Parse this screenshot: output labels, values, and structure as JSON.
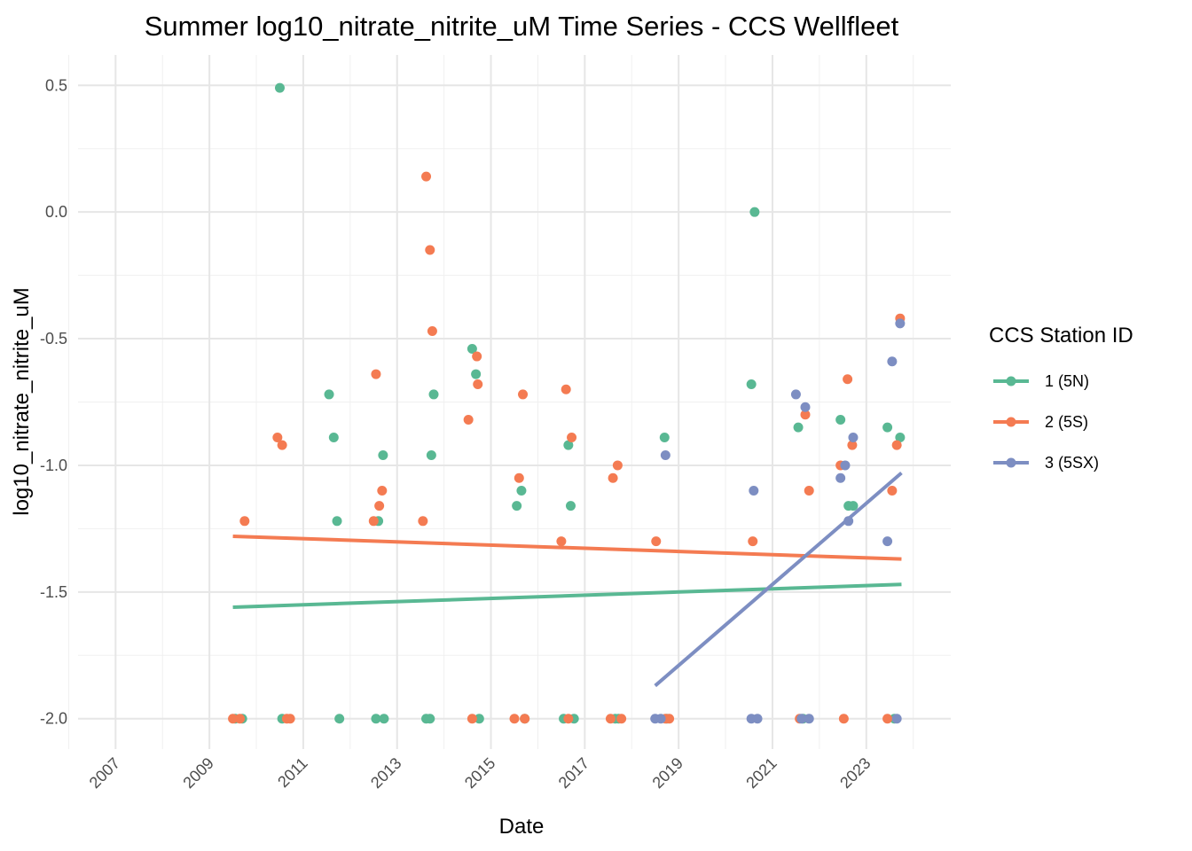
{
  "chart_data": {
    "type": "scatter",
    "title": "Summer log10_nitrate_nitrite_uM Time Series - CCS Wellfleet",
    "xlabel": "Date",
    "ylabel": "log10_nitrate_nitrite_uM",
    "xlim": [
      2006.2,
      2024.8
    ],
    "ylim": [
      -2.12,
      0.62
    ],
    "x_ticks": [
      2007,
      2009,
      2011,
      2013,
      2015,
      2017,
      2019,
      2021,
      2023
    ],
    "x_tick_labels": [
      "2007",
      "2009",
      "2011",
      "2013",
      "2015",
      "2017",
      "2019",
      "2021",
      "2023"
    ],
    "y_ticks": [
      -2.0,
      -1.5,
      -1.0,
      -0.5,
      0.0,
      0.5
    ],
    "y_tick_labels": [
      "-2.0",
      "-1.5",
      "-1.0",
      "-0.5",
      "0.0",
      "0.5"
    ],
    "grid": true,
    "legend_title": "CCS Station ID",
    "legend_position": "right",
    "series": [
      {
        "name": "1 (5N)",
        "color": "#59b893",
        "points": [
          [
            2009.55,
            -2.0
          ],
          [
            2009.7,
            -2.0
          ],
          [
            2010.5,
            0.49
          ],
          [
            2010.55,
            -2.0
          ],
          [
            2011.55,
            -0.72
          ],
          [
            2011.65,
            -0.89
          ],
          [
            2011.72,
            -1.22
          ],
          [
            2011.77,
            -2.0
          ],
          [
            2012.55,
            -2.0
          ],
          [
            2012.6,
            -1.22
          ],
          [
            2012.7,
            -0.96
          ],
          [
            2012.72,
            -2.0
          ],
          [
            2013.62,
            -2.0
          ],
          [
            2013.7,
            -2.0
          ],
          [
            2013.73,
            -0.96
          ],
          [
            2013.78,
            -0.72
          ],
          [
            2014.6,
            -0.54
          ],
          [
            2014.68,
            -0.64
          ],
          [
            2014.75,
            -2.0
          ],
          [
            2015.55,
            -1.16
          ],
          [
            2015.65,
            -1.1
          ],
          [
            2015.72,
            -2.0
          ],
          [
            2016.55,
            -2.0
          ],
          [
            2016.65,
            -0.92
          ],
          [
            2016.7,
            -1.16
          ],
          [
            2016.77,
            -2.0
          ],
          [
            2017.65,
            -2.0
          ],
          [
            2017.72,
            -2.0
          ],
          [
            2018.7,
            -0.89
          ],
          [
            2018.75,
            -2.0
          ],
          [
            2020.55,
            -0.68
          ],
          [
            2020.62,
            0.0
          ],
          [
            2021.55,
            -0.85
          ],
          [
            2021.65,
            -2.0
          ],
          [
            2022.45,
            -0.82
          ],
          [
            2022.62,
            -1.16
          ],
          [
            2022.72,
            -1.16
          ],
          [
            2023.45,
            -0.85
          ],
          [
            2023.6,
            -2.0
          ],
          [
            2023.72,
            -0.89
          ]
        ],
        "trend": [
          [
            2009.5,
            -1.56
          ],
          [
            2023.75,
            -1.47
          ]
        ]
      },
      {
        "name": "2 (5S)",
        "color": "#f47b52",
        "points": [
          [
            2009.5,
            -2.0
          ],
          [
            2009.65,
            -2.0
          ],
          [
            2009.75,
            -1.22
          ],
          [
            2010.45,
            -0.89
          ],
          [
            2010.55,
            -0.92
          ],
          [
            2010.65,
            -2.0
          ],
          [
            2010.72,
            -2.0
          ],
          [
            2012.5,
            -1.22
          ],
          [
            2012.55,
            -0.64
          ],
          [
            2012.62,
            -1.16
          ],
          [
            2012.68,
            -1.1
          ],
          [
            2013.55,
            -1.22
          ],
          [
            2013.62,
            0.14
          ],
          [
            2013.7,
            -0.15
          ],
          [
            2013.75,
            -0.47
          ],
          [
            2014.52,
            -0.82
          ],
          [
            2014.6,
            -2.0
          ],
          [
            2014.7,
            -0.57
          ],
          [
            2014.72,
            -0.68
          ],
          [
            2015.5,
            -2.0
          ],
          [
            2015.6,
            -1.05
          ],
          [
            2015.68,
            -0.72
          ],
          [
            2015.72,
            -2.0
          ],
          [
            2016.5,
            -1.3
          ],
          [
            2016.6,
            -0.7
          ],
          [
            2016.65,
            -2.0
          ],
          [
            2016.72,
            -0.89
          ],
          [
            2017.55,
            -2.0
          ],
          [
            2017.6,
            -1.05
          ],
          [
            2017.7,
            -1.0
          ],
          [
            2017.78,
            -2.0
          ],
          [
            2018.52,
            -1.3
          ],
          [
            2018.72,
            -2.0
          ],
          [
            2018.8,
            -2.0
          ],
          [
            2020.58,
            -1.3
          ],
          [
            2021.58,
            -2.0
          ],
          [
            2021.7,
            -0.8
          ],
          [
            2021.78,
            -1.1
          ],
          [
            2022.45,
            -1.0
          ],
          [
            2022.52,
            -2.0
          ],
          [
            2022.6,
            -0.66
          ],
          [
            2022.7,
            -0.92
          ],
          [
            2023.45,
            -2.0
          ],
          [
            2023.55,
            -1.1
          ],
          [
            2023.65,
            -0.92
          ],
          [
            2023.72,
            -0.42
          ]
        ],
        "trend": [
          [
            2009.5,
            -1.28
          ],
          [
            2023.75,
            -1.37
          ]
        ]
      },
      {
        "name": "3 (5SX)",
        "color": "#7d8ec2",
        "points": [
          [
            2018.5,
            -2.0
          ],
          [
            2018.62,
            -2.0
          ],
          [
            2018.72,
            -0.96
          ],
          [
            2020.55,
            -2.0
          ],
          [
            2020.6,
            -1.1
          ],
          [
            2020.68,
            -2.0
          ],
          [
            2021.5,
            -0.72
          ],
          [
            2021.62,
            -2.0
          ],
          [
            2021.7,
            -0.77
          ],
          [
            2021.78,
            -2.0
          ],
          [
            2022.45,
            -1.05
          ],
          [
            2022.55,
            -1.0
          ],
          [
            2022.62,
            -1.22
          ],
          [
            2022.72,
            -0.89
          ],
          [
            2023.45,
            -1.3
          ],
          [
            2023.55,
            -0.59
          ],
          [
            2023.65,
            -2.0
          ],
          [
            2023.72,
            -0.44
          ]
        ],
        "trend": [
          [
            2018.5,
            -1.87
          ],
          [
            2023.75,
            -1.03
          ]
        ]
      }
    ]
  }
}
